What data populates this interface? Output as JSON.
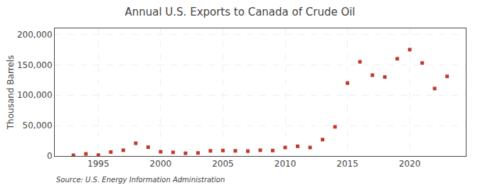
{
  "chart_data": {
    "type": "scatter",
    "title": "Annual U.S. Exports to Canada of Crude Oil",
    "ylabel": "Thousand Barrels",
    "annotations": [
      "Source: U.S. Energy Information Administration"
    ],
    "x": [
      1993,
      1994,
      1995,
      1996,
      1997,
      1998,
      1999,
      2000,
      2001,
      2002,
      2003,
      2004,
      2005,
      2006,
      2007,
      2008,
      2009,
      2010,
      2011,
      2012,
      2013,
      2014,
      2015,
      2016,
      2017,
      2018,
      2019,
      2020,
      2021,
      2022,
      2023
    ],
    "values": [
      1200,
      3500,
      1500,
      6500,
      9500,
      21000,
      14500,
      7000,
      6000,
      4500,
      5000,
      8500,
      9000,
      8500,
      8000,
      9500,
      9000,
      14000,
      16000,
      14000,
      27000,
      48000,
      120000,
      155000,
      133000,
      130000,
      160000,
      175000,
      153000,
      111000,
      131000
    ],
    "color": "#c0392b",
    "marker": "square",
    "xlim": [
      1991.5,
      2024.5
    ],
    "ylim": [
      0,
      210000
    ],
    "xticks": [
      1995,
      2000,
      2005,
      2010,
      2015,
      2020
    ],
    "yticks": [
      0,
      {
        "value": 50000,
        "label": "50,000"
      },
      {
        "value": 100000,
        "label": "100,000"
      },
      {
        "value": 150000,
        "label": "150,000"
      },
      {
        "value": 200000,
        "label": "200,000"
      }
    ],
    "grid": true
  }
}
